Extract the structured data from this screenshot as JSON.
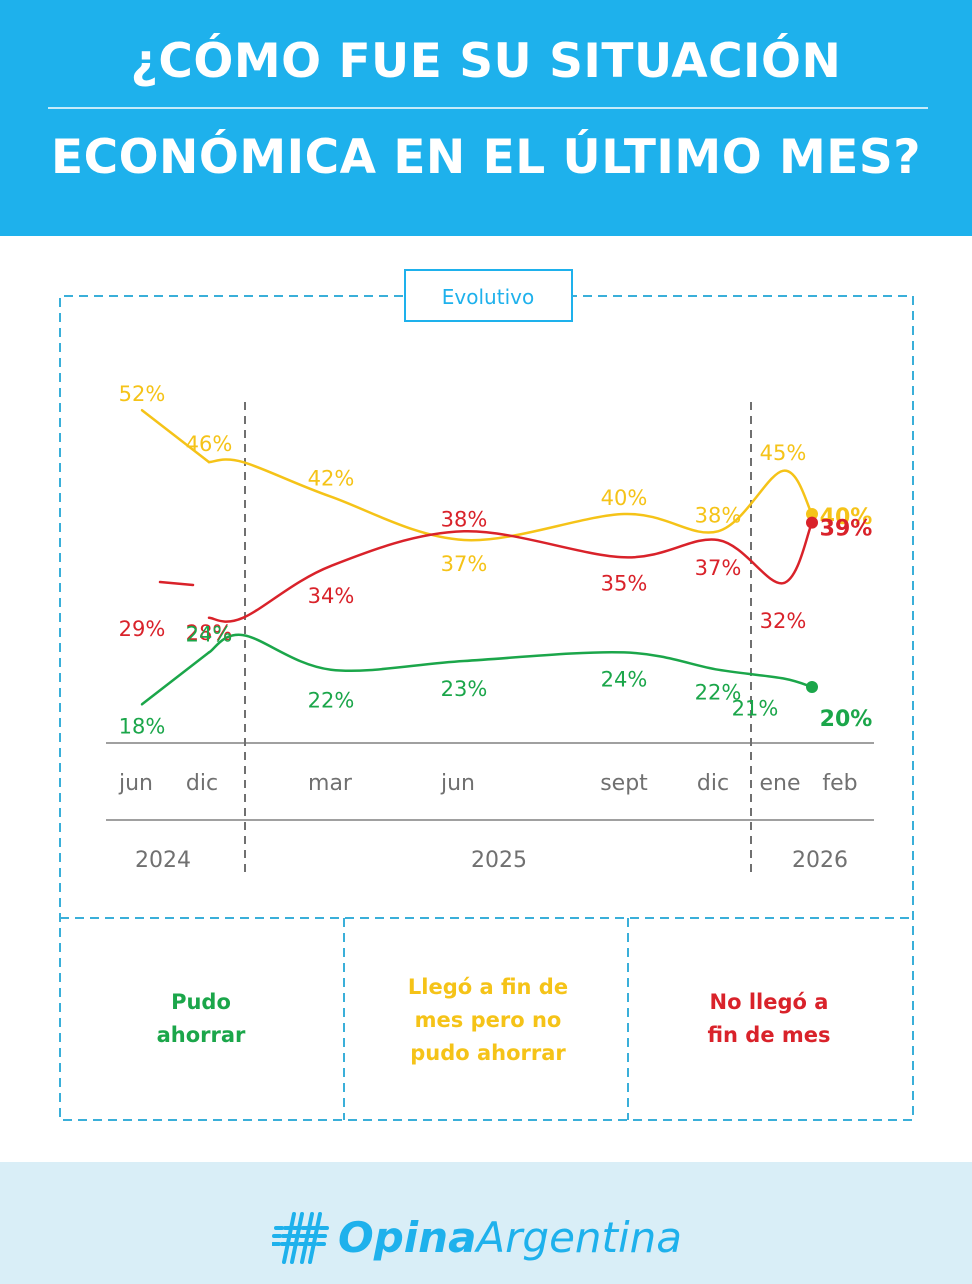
{
  "header": {
    "title_line1": "¿CÓMO FUE SU SITUACIÓN",
    "title_line2": "ECONÓMICA EN EL ÚLTIMO MES?"
  },
  "panel": {
    "label": "Evolutivo"
  },
  "legend": [
    {
      "key": "ahorro",
      "lines": [
        "Pudo",
        "ahorrar"
      ]
    },
    {
      "key": "llego",
      "lines": [
        "Llegó a fin de",
        "mes pero no",
        "pudo ahorrar"
      ]
    },
    {
      "key": "nollego",
      "lines": [
        "No llegó a",
        "fin de mes"
      ]
    }
  ],
  "colors": {
    "header_bg": "#1EB1EC",
    "green": "#1BA64A",
    "yellow": "#F5C318",
    "red": "#D9222A",
    "frame": "#3AAFD9",
    "axis_text": "#707070",
    "footer_bg": "#D9EEF7",
    "brand": "#1EB1EC"
  },
  "chart_data": {
    "type": "line",
    "x_months": [
      "jun",
      "dic",
      "mar",
      "jun",
      "sept",
      "dic",
      "ene",
      "feb"
    ],
    "x_years": [
      "2024",
      "2025",
      "2026"
    ],
    "ylim": [
      15,
      55
    ],
    "grid": false,
    "legend_position": "bottom",
    "series": [
      {
        "key": "llego",
        "points": [
          {
            "x": "2024-06",
            "y": 52,
            "label": "52%"
          },
          {
            "x": "2024-12",
            "y": 46,
            "label": "46%"
          },
          {
            "x": "2025-01",
            "y": 46
          },
          {
            "x": "2025-03",
            "y": 42,
            "label": "42%"
          },
          {
            "x": "2025-06",
            "y": 37,
            "label": "37%"
          },
          {
            "x": "2025-09",
            "y": 40,
            "label": "40%"
          },
          {
            "x": "2025-12",
            "y": 38,
            "label": "38%"
          },
          {
            "x": "2026-01",
            "y": 45,
            "label": "45%"
          },
          {
            "x": "2026-02",
            "y": 40,
            "label": "40%"
          }
        ]
      },
      {
        "key": "nollego",
        "points": [
          {
            "x": "2024-06",
            "y": 29,
            "label": "29%"
          },
          {
            "x": "2024-12",
            "y": 28,
            "label": "28%"
          },
          {
            "x": "2025-01",
            "y": 28
          },
          {
            "x": "2025-03",
            "y": 34,
            "label": "34%"
          },
          {
            "x": "2025-06",
            "y": 38,
            "label": "38%"
          },
          {
            "x": "2025-09",
            "y": 35,
            "label": "35%"
          },
          {
            "x": "2025-12",
            "y": 37,
            "label": "37%"
          },
          {
            "x": "2026-01",
            "y": 32,
            "label": "32%"
          },
          {
            "x": "2026-02",
            "y": 39,
            "label": "39%"
          }
        ]
      },
      {
        "key": "ahorro",
        "points": [
          {
            "x": "2024-06",
            "y": 18,
            "label": "18%"
          },
          {
            "x": "2024-12",
            "y": 24,
            "label": "24%"
          },
          {
            "x": "2025-01",
            "y": 26
          },
          {
            "x": "2025-03",
            "y": 22,
            "label": "22%"
          },
          {
            "x": "2025-06",
            "y": 23,
            "label": "23%"
          },
          {
            "x": "2025-09",
            "y": 24,
            "label": "24%"
          },
          {
            "x": "2025-12",
            "y": 22,
            "label": "22%"
          },
          {
            "x": "2026-01",
            "y": 21,
            "label": "21%"
          },
          {
            "x": "2026-02",
            "y": 20,
            "label": "20%"
          }
        ]
      }
    ]
  },
  "brand": {
    "part1": "Opina",
    "part2": "Argentina",
    "icon": "hashtag-logo-icon"
  }
}
